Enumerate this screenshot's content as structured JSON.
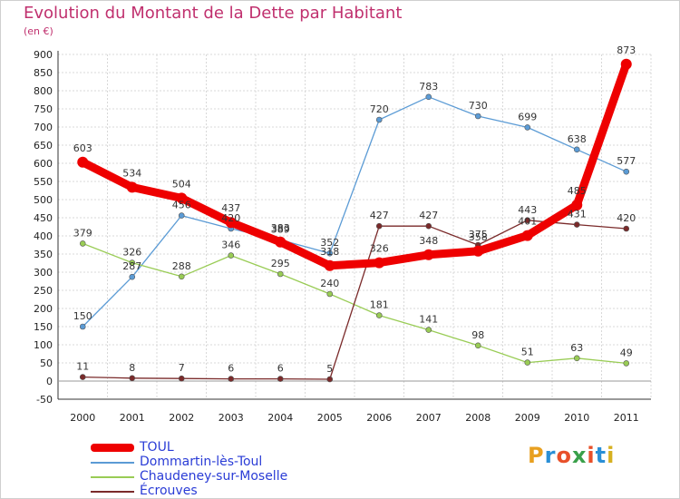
{
  "header": {
    "title": "Evolution du Montant de la Dette par Habitant",
    "subtitle": "(en €)"
  },
  "logo": {
    "text": "Proxiti",
    "colors": [
      "#e8a020",
      "#2a8fd6",
      "#e8502a",
      "#3aa04a",
      "#e8502a",
      "#2a8fd6",
      "#d6b020"
    ]
  },
  "chart_data": {
    "type": "line",
    "title": "Evolution du Montant de la Dette par Habitant",
    "ylabel": "(en €)",
    "xlabel": "",
    "ylim": [
      -50,
      900
    ],
    "yticks": [
      -50,
      0,
      50,
      100,
      150,
      200,
      250,
      300,
      350,
      400,
      450,
      500,
      550,
      600,
      650,
      700,
      750,
      800,
      850,
      900
    ],
    "categories": [
      "2000",
      "2001",
      "2002",
      "2003",
      "2004",
      "2005",
      "2006",
      "2007",
      "2008",
      "2009",
      "2010",
      "2011"
    ],
    "grid": true,
    "legend_position": "bottom-left",
    "series": [
      {
        "name": "TOUL",
        "color": "#ee0000",
        "values": [
          603,
          534,
          504,
          437,
          383,
          318,
          326,
          348,
          358,
          401,
          485,
          873
        ]
      },
      {
        "name": "Dommartin-lès-Toul",
        "color": "#5b9bd5",
        "values": [
          150,
          287,
          456,
          420,
          389,
          352,
          720,
          783,
          730,
          699,
          638,
          577
        ]
      },
      {
        "name": "Chaudeney-sur-Moselle",
        "color": "#99cc55",
        "values": [
          379,
          326,
          288,
          346,
          295,
          240,
          181,
          141,
          98,
          51,
          63,
          49
        ]
      },
      {
        "name": "Écrouves",
        "color": "#7a2a2a",
        "values": [
          11,
          8,
          7,
          6,
          6,
          5,
          427,
          427,
          375,
          443,
          431,
          420
        ]
      }
    ]
  }
}
